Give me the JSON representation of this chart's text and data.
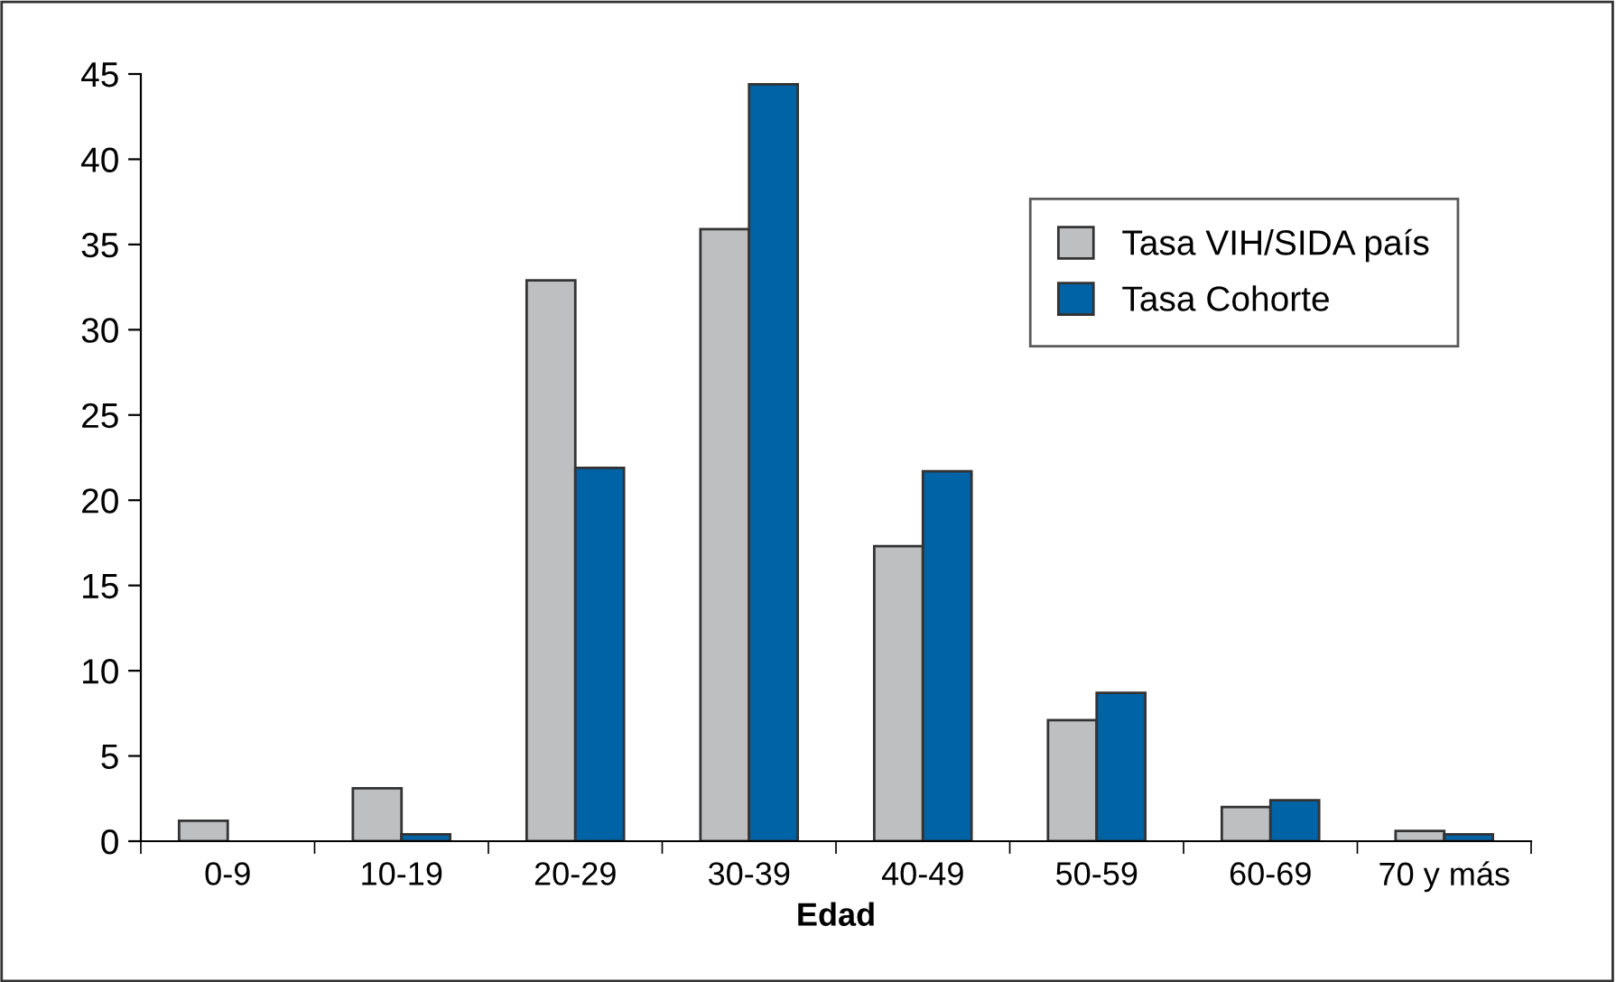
{
  "chart_data": {
    "type": "bar",
    "xlabel": "Edad",
    "categories": [
      "0-9",
      "10-19",
      "20-29",
      "30-39",
      "40-49",
      "50-59",
      "60-69",
      "70 y más"
    ],
    "series": [
      {
        "name": "Tasa VIH/SIDA país",
        "color": "#bebfc1",
        "values": [
          1.2,
          3.1,
          32.9,
          35.9,
          17.3,
          7.1,
          2.0,
          0.6
        ]
      },
      {
        "name": "Tasa Cohorte",
        "color": "#0063a6",
        "values": [
          null,
          0.4,
          21.9,
          44.4,
          21.7,
          8.7,
          2.4,
          0.4
        ]
      }
    ],
    "ylim": [
      0,
      45
    ],
    "yticks": [
      0,
      5,
      10,
      15,
      20,
      25,
      30,
      35,
      40,
      45
    ],
    "grid": false,
    "legend": "top right"
  }
}
